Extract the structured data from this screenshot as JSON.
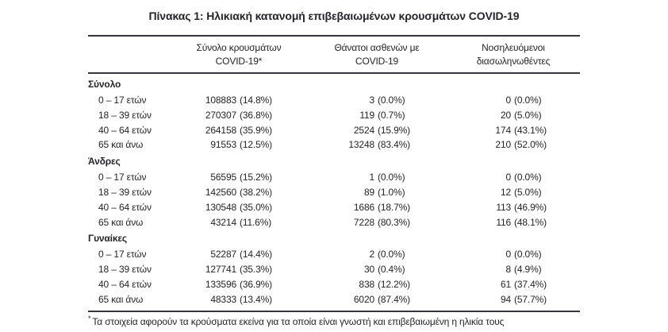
{
  "page": {
    "title": "Πίνακας 1: Ηλικιακή κατανομή επιβεβαιωμένων κρουσμάτων COVID-19",
    "footnote": {
      "marker": "*",
      "text": "Τα στοιχεία αφορούν τα κρούσματα εκείνα για τα οποία είναι γνωστή και επιβεβαιωμένη η ηλικία τους"
    }
  },
  "colors": {
    "text": "#24242c",
    "rule": "#35353b",
    "background": "#ffffff"
  },
  "table": {
    "header": [
      {
        "line1": "Σύνολο κρουσμάτων",
        "line2": "COVID-19*"
      },
      {
        "line1": "Θάνατοι ασθενών με",
        "line2": "COVID-19"
      },
      {
        "line1": "Νοσηλευόμενοι",
        "line2": "διασωληνωθέντες"
      }
    ],
    "sections": [
      {
        "label": "Σύνολο",
        "rows": [
          {
            "label": "0 – 17 ετών",
            "cells": [
              {
                "n": "108883",
                "p": "(14.8%)"
              },
              {
                "n": "3",
                "p": "(0.0%)"
              },
              {
                "n": "0",
                "p": "(0.0%)"
              }
            ]
          },
          {
            "label": "18 – 39 ετών",
            "cells": [
              {
                "n": "270307",
                "p": "(36.8%)"
              },
              {
                "n": "119",
                "p": "(0.7%)"
              },
              {
                "n": "20",
                "p": "(5.0%)"
              }
            ]
          },
          {
            "label": "40 – 64 ετών",
            "cells": [
              {
                "n": "264158",
                "p": "(35.9%)"
              },
              {
                "n": "2524",
                "p": "(15.9%)"
              },
              {
                "n": "174",
                "p": "(43.1%)"
              }
            ]
          },
          {
            "label": "65 και άνω",
            "cells": [
              {
                "n": "91553",
                "p": "(12.5%)"
              },
              {
                "n": "13248",
                "p": "(83.4%)"
              },
              {
                "n": "210",
                "p": "(52.0%)"
              }
            ]
          }
        ]
      },
      {
        "label": "Άνδρες",
        "rows": [
          {
            "label": "0 – 17 ετών",
            "cells": [
              {
                "n": "56595",
                "p": "(15.2%)"
              },
              {
                "n": "1",
                "p": "(0.0%)"
              },
              {
                "n": "0",
                "p": "(0.0%)"
              }
            ]
          },
          {
            "label": "18 – 39 ετών",
            "cells": [
              {
                "n": "142560",
                "p": "(38.2%)"
              },
              {
                "n": "89",
                "p": "(1.0%)"
              },
              {
                "n": "12",
                "p": "(5.0%)"
              }
            ]
          },
          {
            "label": "40 – 64 ετών",
            "cells": [
              {
                "n": "130548",
                "p": "(35.0%)"
              },
              {
                "n": "1686",
                "p": "(18.7%)"
              },
              {
                "n": "113",
                "p": "(46.9%)"
              }
            ]
          },
          {
            "label": "65 και άνω",
            "cells": [
              {
                "n": "43214",
                "p": "(11.6%)"
              },
              {
                "n": "7228",
                "p": "(80.3%)"
              },
              {
                "n": "116",
                "p": "(48.1%)"
              }
            ]
          }
        ]
      },
      {
        "label": "Γυναίκες",
        "rows": [
          {
            "label": "0 – 17 ετών",
            "cells": [
              {
                "n": "52287",
                "p": "(14.4%)"
              },
              {
                "n": "2",
                "p": "(0.0%)"
              },
              {
                "n": "0",
                "p": "(0.0%)"
              }
            ]
          },
          {
            "label": "18 – 39 ετών",
            "cells": [
              {
                "n": "127741",
                "p": "(35.3%)"
              },
              {
                "n": "30",
                "p": "(0.4%)"
              },
              {
                "n": "8",
                "p": "(4.9%)"
              }
            ]
          },
          {
            "label": "40 – 64 ετών",
            "cells": [
              {
                "n": "133596",
                "p": "(36.9%)"
              },
              {
                "n": "838",
                "p": "(12.2%)"
              },
              {
                "n": "61",
                "p": "(37.4%)"
              }
            ]
          },
          {
            "label": "65 και άνω",
            "cells": [
              {
                "n": "48333",
                "p": "(13.4%)"
              },
              {
                "n": "6020",
                "p": "(87.4%)"
              },
              {
                "n": "94",
                "p": "(57.7%)"
              }
            ]
          }
        ]
      }
    ]
  }
}
